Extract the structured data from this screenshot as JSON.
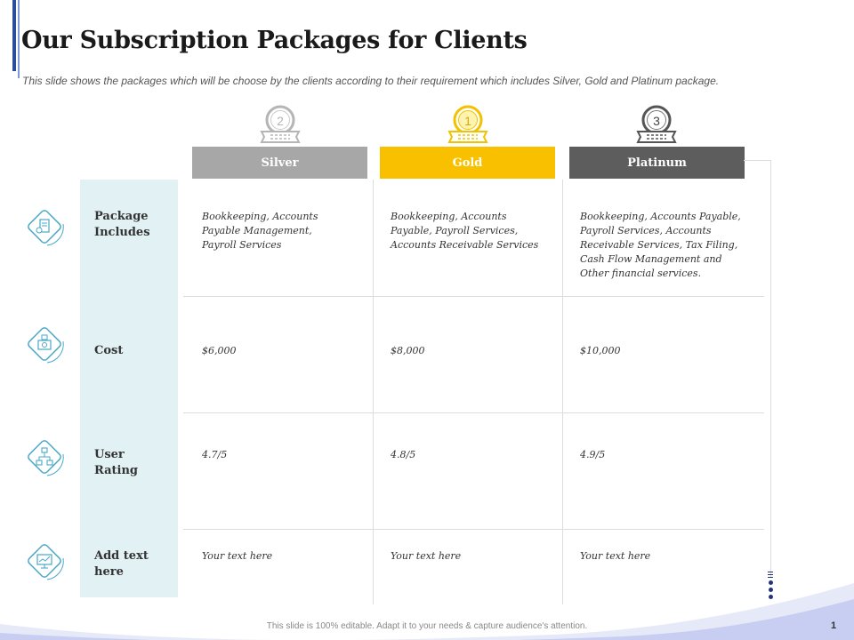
{
  "slide": {
    "title": "Our Subscription Packages for Clients",
    "subtitle": "This slide shows the packages which will be choose by the clients according to their requirement  which includes Silver, Gold and Platinum package.",
    "footer": "This slide is 100% editable.  Adapt it to your needs & capture audience's attention.",
    "page_number": "1"
  },
  "packages": [
    {
      "name": "Silver",
      "rank": "2",
      "color": "#a7a7a7"
    },
    {
      "name": "Gold",
      "rank": "1",
      "color": "#f9c000"
    },
    {
      "name": "Platinum",
      "rank": "3",
      "color": "#5d5d5d"
    }
  ],
  "rows": [
    {
      "label_lines": [
        "Package",
        "Includes"
      ],
      "icon": "document-icon",
      "cells": [
        [
          "Bookkeeping, Accounts",
          "Payable Management,",
          "Payroll Services"
        ],
        [
          "Bookkeeping, Accounts",
          "Payable, Payroll Services,",
          "Accounts Receivable Services"
        ],
        [
          "Bookkeeping, Accounts Payable,",
          "Payroll Services, Accounts",
          "Receivable Services, Tax Filing,",
          "Cash Flow Management  and",
          "Other financial services."
        ]
      ]
    },
    {
      "label_lines": [
        "Cost"
      ],
      "icon": "money-icon",
      "cells": [
        [
          "$6,000"
        ],
        [
          "$8,000"
        ],
        [
          "$10,000"
        ]
      ]
    },
    {
      "label_lines": [
        "User",
        "Rating"
      ],
      "icon": "network-icon",
      "cells": [
        [
          "4.7/5"
        ],
        [
          "4.8/5"
        ],
        [
          "4.9/5"
        ]
      ]
    },
    {
      "label_lines": [
        "Add text",
        "here"
      ],
      "icon": "presentation-icon",
      "cells": [
        [
          "Your text here"
        ],
        [
          "Your text here"
        ],
        [
          "Your text here"
        ]
      ]
    }
  ],
  "colors": {
    "accent": "#2b4d9b",
    "panel": "#e2f1f4",
    "icon": "#4aa8c8"
  }
}
